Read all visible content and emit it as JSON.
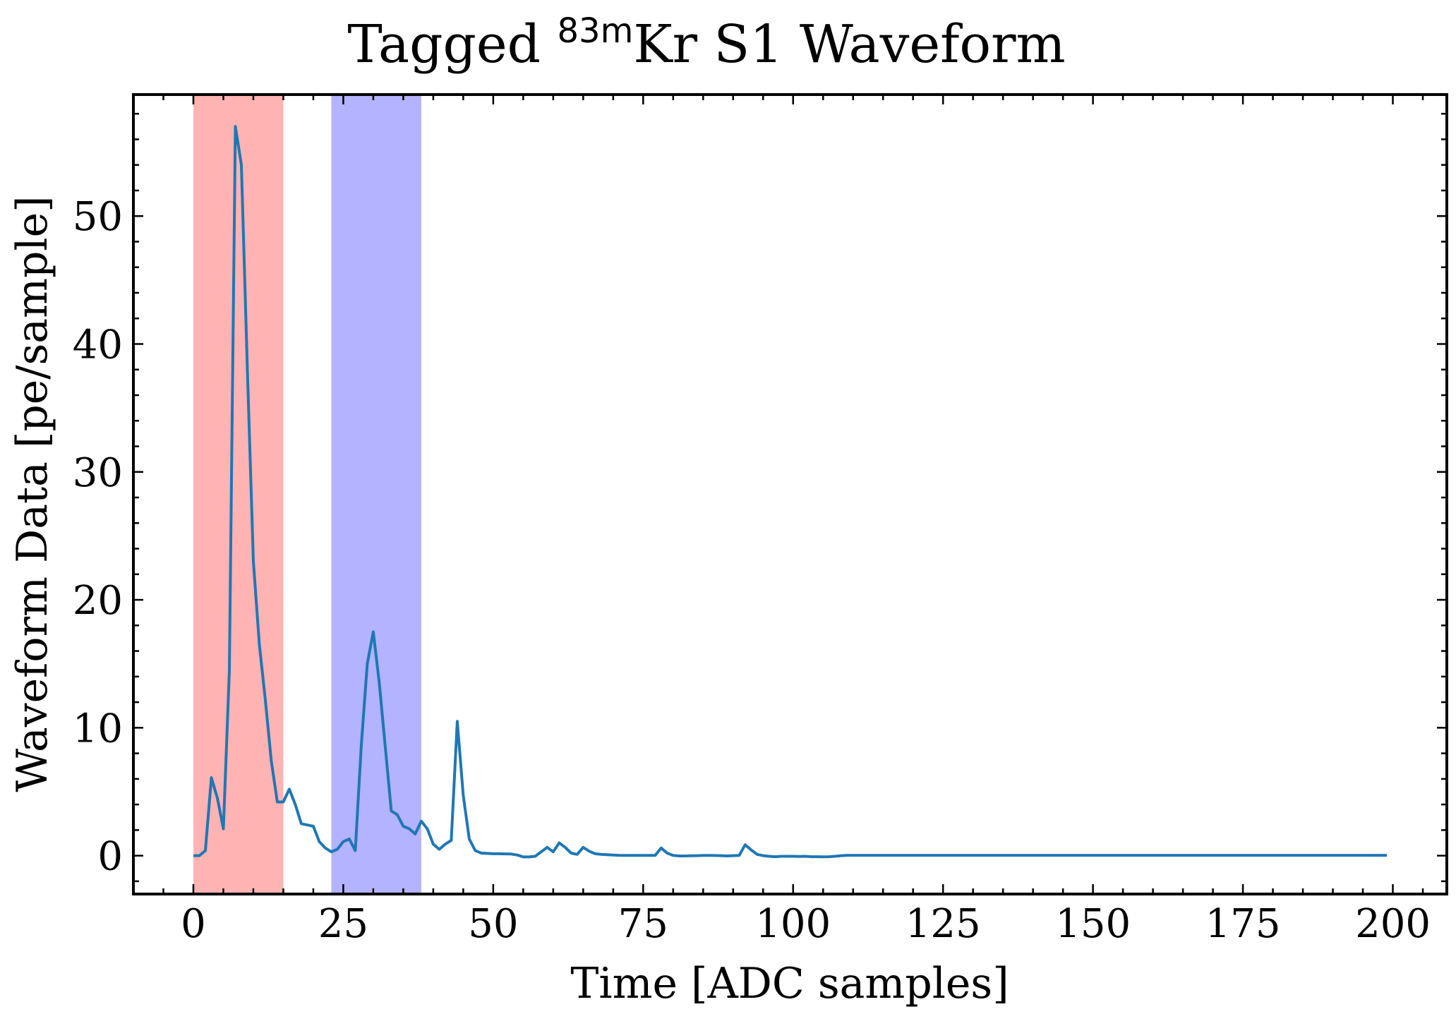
{
  "chart_data": {
    "type": "line",
    "title": {
      "prefix": "Tagged ",
      "superscript": "83m",
      "suffix": "Kr S1 Waveform"
    },
    "xlabel": "Time [ADC samples]",
    "ylabel": "Waveform Data [pe/sample]",
    "xlim": [
      -10,
      209
    ],
    "ylim": [
      -3,
      59.5
    ],
    "xticks": [
      0,
      25,
      50,
      75,
      100,
      125,
      150,
      175,
      200
    ],
    "xtick_labels": [
      "0",
      "25",
      "50",
      "75",
      "100",
      "125",
      "150",
      "175",
      "200"
    ],
    "yticks": [
      0,
      10,
      20,
      30,
      40,
      50
    ],
    "ytick_labels": [
      "0",
      "10",
      "20",
      "30",
      "40",
      "50"
    ],
    "grid": false,
    "shaded_regions": [
      {
        "x_start": 0,
        "x_end": 15,
        "color": "#ffb3b3"
      },
      {
        "x_start": 23,
        "x_end": 38,
        "color": "#b3b3ff"
      }
    ],
    "series": [
      {
        "color": "#1f77b4",
        "x": [
          0,
          1,
          2,
          3,
          4,
          5,
          6,
          7,
          8,
          9,
          10,
          11,
          12,
          13,
          14,
          15,
          16,
          17,
          18,
          19,
          20,
          21,
          22,
          23,
          24,
          25,
          26,
          27,
          28,
          29,
          30,
          31,
          32,
          33,
          34,
          35,
          36,
          37,
          38,
          39,
          40,
          41,
          42,
          43,
          44,
          45,
          46,
          47,
          48,
          49,
          50,
          51,
          52,
          53,
          54,
          55,
          56,
          57,
          58,
          59,
          60,
          61,
          62,
          63,
          64,
          65,
          66,
          67,
          68,
          69,
          70,
          71,
          72,
          73,
          74,
          75,
          76,
          77,
          78,
          79,
          80,
          81,
          82,
          83,
          84,
          85,
          86,
          87,
          88,
          89,
          90,
          91,
          92,
          93,
          94,
          95,
          96,
          97,
          98,
          99,
          100,
          101,
          102,
          103,
          104,
          105,
          106,
          107,
          108,
          109,
          110,
          115,
          120,
          125,
          130,
          135,
          140,
          145,
          150,
          155,
          160,
          165,
          170,
          175,
          180,
          185,
          190,
          195,
          199
        ],
        "y": [
          0,
          0,
          0.4,
          6.1,
          4.5,
          2.1,
          14.5,
          57,
          54,
          38,
          23,
          16.5,
          12.2,
          7.4,
          4.2,
          4.2,
          5.2,
          4,
          2.5,
          2.4,
          2.3,
          1.1,
          0.6,
          0.3,
          0.5,
          1.1,
          1.3,
          0.4,
          8.6,
          15,
          17.5,
          13.5,
          8.5,
          3.5,
          3.2,
          2.3,
          2.1,
          1.7,
          2.7,
          2.1,
          0.9,
          0.5,
          0.9,
          1.2,
          10.5,
          4.7,
          1.3,
          0.4,
          0.2,
          0.18,
          0.15,
          0.15,
          0.14,
          0.13,
          0.05,
          -0.1,
          -0.1,
          -0.05,
          0.3,
          0.65,
          0.3,
          1,
          0.65,
          0.2,
          0.1,
          0.65,
          0.35,
          0.15,
          0.1,
          0.08,
          0.05,
          0.03,
          0.02,
          0.02,
          0.02,
          0.02,
          0.02,
          0.02,
          0.6,
          0.2,
          0.02,
          -0.02,
          -0.02,
          -0.01,
          0,
          0.02,
          0.02,
          0.01,
          0,
          -0.02,
          0,
          0.02,
          0.85,
          0.45,
          0.1,
          0,
          -0.05,
          -0.08,
          -0.05,
          -0.05,
          -0.05,
          -0.06,
          -0.05,
          -0.08,
          -0.08,
          -0.09,
          -0.08,
          -0.05,
          0,
          0.03,
          0.03,
          0.03,
          0.03,
          0.03,
          0.03,
          0.03,
          0.03,
          0.03,
          0.03,
          0.03,
          0.03,
          0.03,
          0.03,
          0.03,
          0.03,
          0.03,
          0.03,
          0.03,
          0.03
        ]
      }
    ]
  }
}
